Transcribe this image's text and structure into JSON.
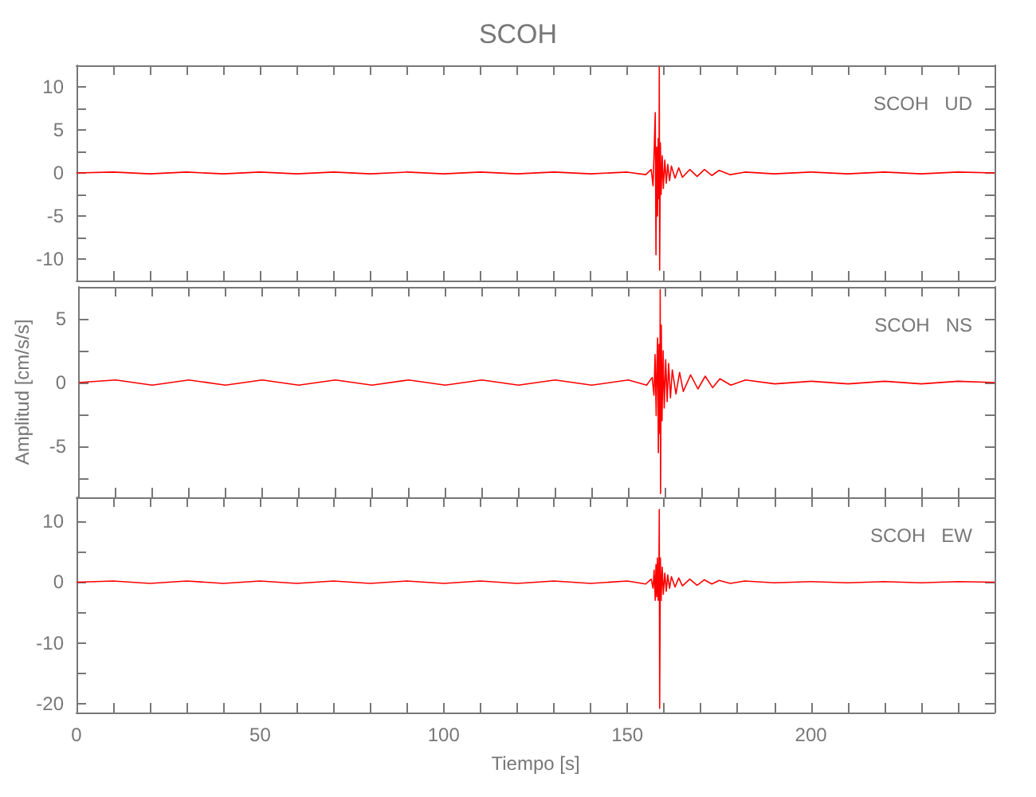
{
  "chart_data": [
    {
      "type": "line",
      "title": "SCOH",
      "annotations": [
        "SCOH   UD"
      ],
      "tick_labels": "y",
      "color": "#ff0000",
      "x": [
        0,
        10,
        20,
        30,
        40,
        50,
        60,
        70,
        80,
        90,
        100,
        110,
        120,
        130,
        140,
        150,
        155,
        156.5,
        157,
        157.3,
        157.6,
        157.8,
        158,
        158.2,
        158.4,
        158.6,
        158.7,
        158.8,
        159,
        159.2,
        159.5,
        159.8,
        160.2,
        160.6,
        161,
        161.5,
        162,
        163,
        164,
        165,
        167,
        169,
        171,
        173,
        175,
        178,
        182,
        190,
        200,
        210,
        220,
        230,
        240,
        250
      ],
      "values": [
        0,
        0.1,
        -0.1,
        0.1,
        -0.1,
        0.1,
        -0.1,
        0.1,
        -0.1,
        0.1,
        -0.1,
        0.1,
        -0.1,
        0.1,
        -0.1,
        0.1,
        -0.2,
        0.4,
        -1.5,
        2.5,
        7,
        -9.5,
        3,
        -5,
        4,
        -3,
        12.3,
        -11.3,
        3.5,
        -2.5,
        2,
        -1.8,
        1.5,
        -1.2,
        1,
        -0.9,
        0.8,
        -0.6,
        0.6,
        -0.5,
        0.4,
        -0.4,
        0.4,
        -0.3,
        0.3,
        -0.2,
        0.1,
        -0.1,
        0.1,
        -0.1,
        0.1,
        -0.1,
        0.1,
        0
      ],
      "xlim": [
        0,
        250
      ],
      "xticks": [
        0,
        {
          "value": 10,
          "label": null
        },
        {
          "value": 20,
          "label": null
        },
        {
          "value": 30,
          "label": null
        },
        {
          "value": 40,
          "label": null
        },
        50,
        {
          "value": 60,
          "label": null
        },
        {
          "value": 70,
          "label": null
        },
        {
          "value": 80,
          "label": null
        },
        {
          "value": 90,
          "label": null
        },
        100,
        {
          "value": 110,
          "label": null
        },
        {
          "value": 120,
          "label": null
        },
        {
          "value": 130,
          "label": null
        },
        {
          "value": 140,
          "label": null
        },
        150,
        {
          "value": 160,
          "label": null
        },
        {
          "value": 170,
          "label": null
        },
        {
          "value": 180,
          "label": null
        },
        {
          "value": 190,
          "label": null
        },
        200,
        {
          "value": 210,
          "label": null
        },
        {
          "value": 220,
          "label": null
        },
        {
          "value": 230,
          "label": null
        },
        {
          "value": 240,
          "label": null
        }
      ],
      "ylim": [
        -12.5,
        12.5
      ],
      "yticks": [
        -10,
        {
          "value": -7.5,
          "label": null
        },
        -5,
        {
          "value": -2.5,
          "label": null
        },
        0,
        {
          "value": 2.5,
          "label": null
        },
        5,
        {
          "value": 7.5,
          "label": null
        },
        10
      ]
    },
    {
      "type": "line",
      "ylabel": "Amplitud [cm/s/s]",
      "annotations": [
        "SCOH   NS"
      ],
      "tick_labels": "y",
      "color": "#ff0000",
      "x": [
        0,
        10,
        20,
        30,
        40,
        50,
        60,
        70,
        80,
        90,
        100,
        110,
        120,
        130,
        140,
        150,
        155,
        156.5,
        157,
        157.3,
        157.6,
        157.8,
        158,
        158.2,
        158.4,
        158.6,
        158.7,
        158.8,
        159,
        159.2,
        159.5,
        159.8,
        160.2,
        160.6,
        161,
        161.5,
        162,
        163,
        164,
        165,
        167,
        169,
        171,
        173,
        175,
        178,
        182,
        190,
        200,
        210,
        220,
        230,
        240,
        250
      ],
      "values": [
        0,
        0.2,
        -0.2,
        0.2,
        -0.2,
        0.2,
        -0.2,
        0.2,
        -0.2,
        0.2,
        -0.2,
        0.2,
        -0.2,
        0.2,
        -0.2,
        0.2,
        -0.2,
        0.4,
        -1,
        2.2,
        -2.6,
        1.5,
        3.5,
        -5.5,
        3,
        -4,
        7.3,
        -8.7,
        4.5,
        -3,
        2.5,
        -2,
        1.8,
        -1.5,
        1.5,
        -1.2,
        1,
        -0.9,
        0.8,
        -0.7,
        0.6,
        -0.5,
        0.5,
        -0.4,
        0.3,
        -0.2,
        0.2,
        -0.1,
        0.1,
        -0.1,
        0.1,
        -0.1,
        0.1,
        0
      ],
      "xlim": [
        0,
        250
      ],
      "xticks": [
        0,
        {
          "value": 10,
          "label": null
        },
        {
          "value": 20,
          "label": null
        },
        {
          "value": 30,
          "label": null
        },
        {
          "value": 40,
          "label": null
        },
        50,
        {
          "value": 60,
          "label": null
        },
        {
          "value": 70,
          "label": null
        },
        {
          "value": 80,
          "label": null
        },
        {
          "value": 90,
          "label": null
        },
        100,
        {
          "value": 110,
          "label": null
        },
        {
          "value": 120,
          "label": null
        },
        {
          "value": 130,
          "label": null
        },
        {
          "value": 140,
          "label": null
        },
        150,
        {
          "value": 160,
          "label": null
        },
        {
          "value": 170,
          "label": null
        },
        {
          "value": 180,
          "label": null
        },
        {
          "value": 190,
          "label": null
        },
        200,
        {
          "value": 210,
          "label": null
        },
        {
          "value": 220,
          "label": null
        },
        {
          "value": 230,
          "label": null
        },
        {
          "value": 240,
          "label": null
        }
      ],
      "ylim": [
        -9,
        7.5
      ],
      "yticks": [
        {
          "value": -7.5,
          "label": null
        },
        -5,
        {
          "value": -2.5,
          "label": null
        },
        0,
        {
          "value": 2.5,
          "label": null
        },
        5
      ]
    },
    {
      "type": "line",
      "xlabel": "Tiempo [s]",
      "annotations": [
        "SCOH   EW"
      ],
      "color": "#ff0000",
      "x": [
        0,
        10,
        20,
        30,
        40,
        50,
        60,
        70,
        80,
        90,
        100,
        110,
        120,
        130,
        140,
        150,
        155,
        156.5,
        157,
        157.3,
        157.6,
        157.8,
        158,
        158.2,
        158.4,
        158.6,
        158.7,
        158.8,
        159,
        159.2,
        159.5,
        159.8,
        160.2,
        160.6,
        161,
        161.5,
        162,
        163,
        164,
        165,
        167,
        169,
        171,
        173,
        175,
        178,
        182,
        190,
        200,
        210,
        220,
        230,
        240,
        250
      ],
      "values": [
        0,
        0.2,
        -0.2,
        0.2,
        -0.2,
        0.2,
        -0.2,
        0.2,
        -0.2,
        0.2,
        -0.2,
        0.2,
        -0.2,
        0.2,
        -0.2,
        0.2,
        -0.3,
        0.5,
        -1,
        2,
        -3,
        2.9,
        -2.4,
        4,
        -3,
        2,
        12,
        -20.8,
        4,
        -3,
        2.5,
        -2,
        1.5,
        -1.5,
        1.2,
        -1,
        0.9,
        -0.8,
        0.7,
        -0.6,
        0.5,
        -0.5,
        0.4,
        -0.3,
        0.3,
        -0.2,
        0.2,
        -0.1,
        0.1,
        -0.1,
        0.1,
        -0.1,
        0.1,
        0
      ],
      "xlim": [
        0,
        250
      ],
      "xticks": [
        0,
        {
          "value": 10,
          "label": null
        },
        {
          "value": 20,
          "label": null
        },
        {
          "value": 30,
          "label": null
        },
        {
          "value": 40,
          "label": null
        },
        50,
        {
          "value": 60,
          "label": null
        },
        {
          "value": 70,
          "label": null
        },
        {
          "value": 80,
          "label": null
        },
        {
          "value": 90,
          "label": null
        },
        100,
        {
          "value": 110,
          "label": null
        },
        {
          "value": 120,
          "label": null
        },
        {
          "value": 130,
          "label": null
        },
        {
          "value": 140,
          "label": null
        },
        150,
        {
          "value": 160,
          "label": null
        },
        {
          "value": 170,
          "label": null
        },
        {
          "value": 180,
          "label": null
        },
        {
          "value": 190,
          "label": null
        },
        200,
        {
          "value": 210,
          "label": null
        },
        {
          "value": 220,
          "label": null
        },
        {
          "value": 230,
          "label": null
        },
        {
          "value": 240,
          "label": null
        }
      ],
      "ylim": [
        -21.5,
        14
      ],
      "yticks": [
        -20,
        {
          "value": -15,
          "label": null
        },
        -10,
        {
          "value": -5,
          "label": null
        },
        0,
        {
          "value": 5,
          "label": null
        },
        10
      ]
    }
  ]
}
